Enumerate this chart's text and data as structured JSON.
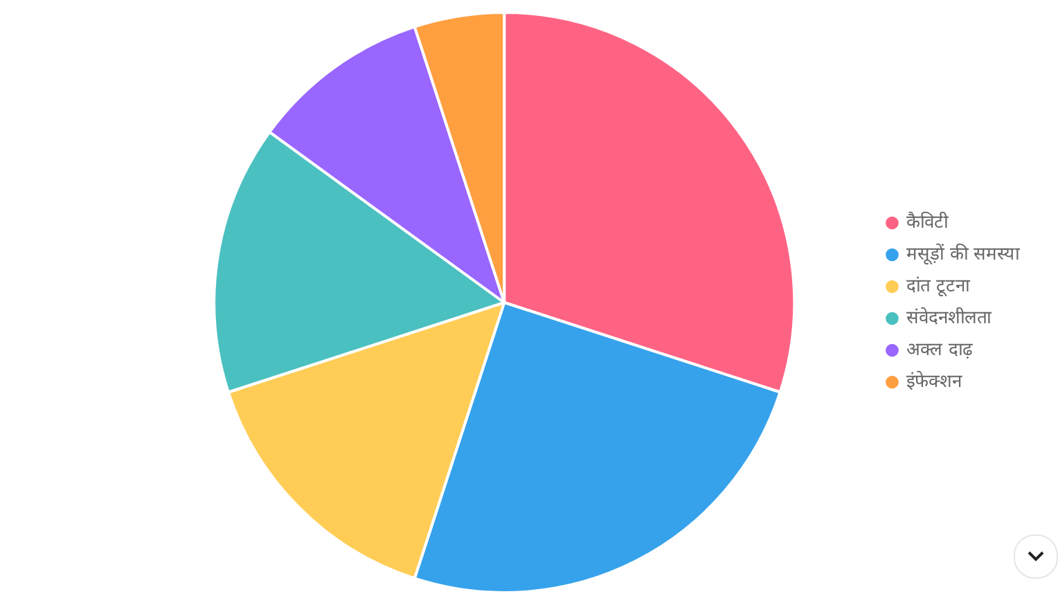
{
  "chart_data": {
    "type": "pie",
    "categories": [
      "कैविटी",
      "मसूड़ों की समस्या",
      "दांत टूटना",
      "संवेदनशीलता",
      "अक्ल दाढ़",
      "इंफेक्शन"
    ],
    "values": [
      30,
      25,
      15,
      15,
      10,
      5
    ],
    "colors": [
      "#ff6384",
      "#36a2eb",
      "#ffcd56",
      "#4bc0c0",
      "#9966ff",
      "#ff9f40"
    ],
    "legend": "right"
  }
}
